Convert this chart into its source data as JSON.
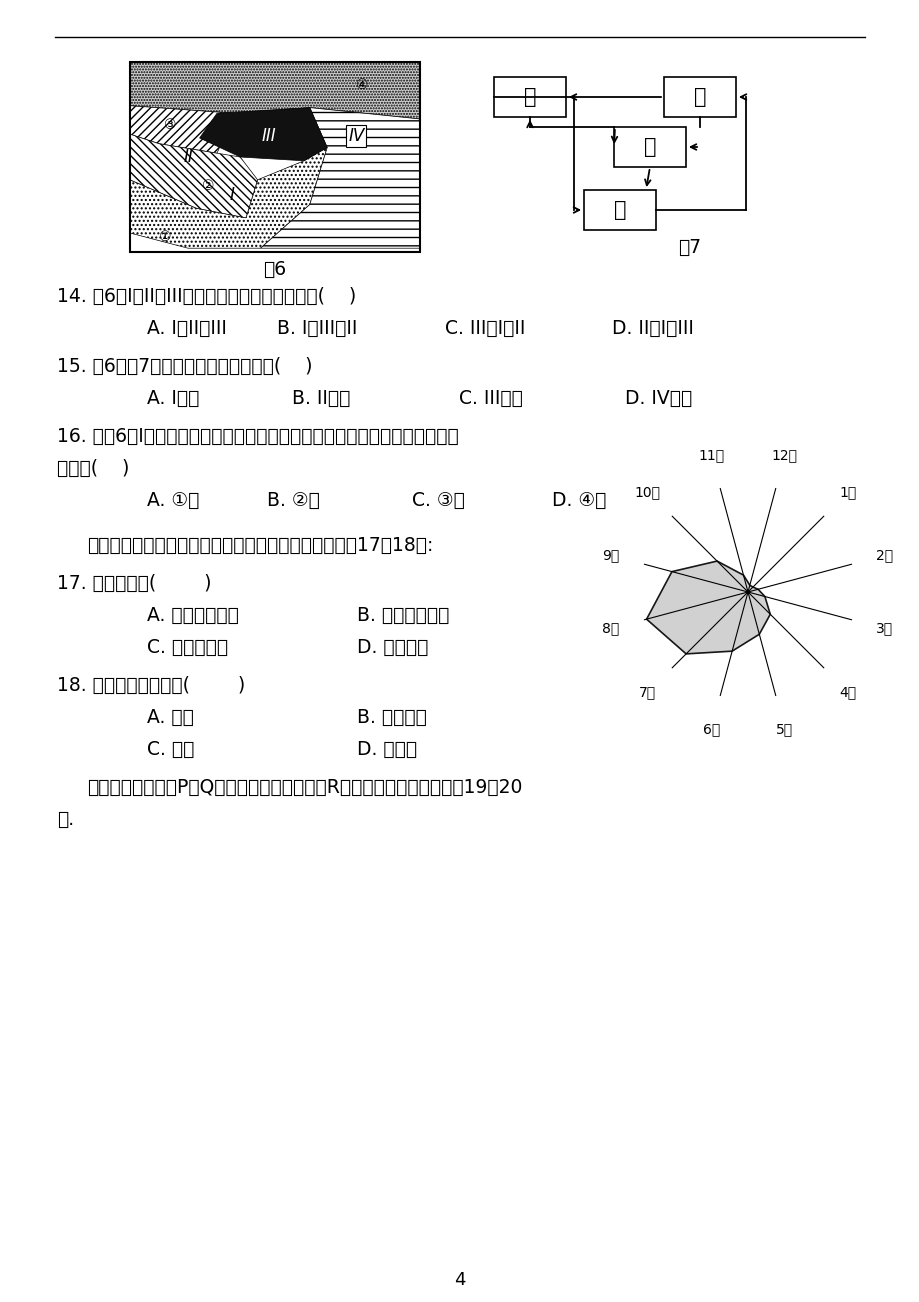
{
  "bg_color": "#ffffff",
  "fig6_label": "图6",
  "fig7_label": "图7",
  "q14": "14. 图6中I、II、III三处岩石由老到新的顺序是(    )",
  "q14_a": "A. I、II、III",
  "q14_b": "B. I、III、II",
  "q14_c": "C. III、I、II",
  "q14_d": "D. II、I、III",
  "q15": "15. 图6与图7中岩石类型对应正确的是(    )",
  "q15_a": "A. I一乙",
  "q15_b": "B. II一丁",
  "q15_c": "C. III一丙",
  "q15_d": "D. IV一甲",
  "q16_1": "16. 若图6中I岩层为隔水层，其他沉积岩层均为透水层，则最有可能存在地下",
  "q16_2": "水的是(    )",
  "q16_a": "A. ①处",
  "q16_b": "B. ②处",
  "q16_c": "C. ③处",
  "q16_d": "D. ④处",
  "intro17_18": "下图为我国某河流的年径流量变化示意图。读图，回答17～18题:",
  "q17": "17. 该河流位于(        )",
  "q17_a": "A. 亚热带季风区",
  "q17_b": "B. 我国西北地区",
  "q17_c": "C. 温带季风区",
  "q17_d": "D. 高寒地带",
  "q18": "18. 该河流最有可能是(        )",
  "q18_a": "A. 珠江",
  "q18_b": "B. 塔里木河",
  "q18_c": "C. 淮河",
  "q18_d": "D. 松花江",
  "q19_1": "读某区域图，图中P、Q为河流的两个水文站，R为河流的一条支流，回答19～20",
  "q19_2": "题.",
  "page_num": "4",
  "radar_months": [
    "1月",
    "2月",
    "3月",
    "4月",
    "5月",
    "6月",
    "7月",
    "8月",
    "9月",
    "10月",
    "11月",
    "12月"
  ],
  "radar_values": [
    0.4,
    0.6,
    1.0,
    1.8,
    2.5,
    3.5,
    5.0,
    6.0,
    4.5,
    2.5,
    1.0,
    0.4
  ],
  "radar_color_fill": "#cccccc",
  "radar_color_edge": "#000000"
}
